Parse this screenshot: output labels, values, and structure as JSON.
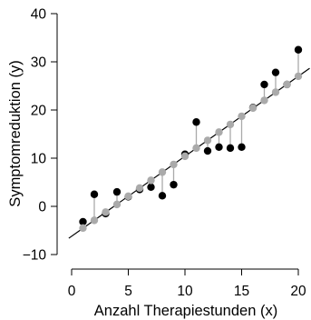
{
  "chart_data": {
    "type": "scatter",
    "title": "",
    "xlabel": "Anzahl Therapiestunden (x)",
    "ylabel": "Symptomreduktion (y)",
    "xlim": [
      0,
      21
    ],
    "ylim": [
      -10,
      40
    ],
    "xticks": [
      0,
      5,
      10,
      15,
      20
    ],
    "yticks": [
      -10,
      0,
      10,
      20,
      30,
      40
    ],
    "grid": false,
    "legend": "none",
    "regression_line": {
      "intercept": -6.2,
      "slope": 1.66,
      "color": "#000000"
    },
    "colors": {
      "observed": "#000000",
      "predicted": "#aaaaaa",
      "residual": "#aaaaaa"
    },
    "series": [
      {
        "x": [
          1,
          2,
          3,
          4,
          5,
          6,
          7,
          8,
          9,
          10,
          11,
          12,
          13,
          14,
          15,
          16,
          17,
          18,
          19,
          20
        ],
        "y": [
          -3.2,
          2.5,
          -1.5,
          3.0,
          2.0,
          3.5,
          4.0,
          2.2,
          4.5,
          10.8,
          17.5,
          11.5,
          12.3,
          12.1,
          12.3,
          20.5,
          25.3,
          27.8,
          25.3,
          32.5
        ]
      },
      {
        "x": [
          1,
          2,
          3,
          4,
          5,
          6,
          7,
          8,
          9,
          10,
          11,
          12,
          13,
          14,
          15,
          16,
          17,
          18,
          19,
          20
        ],
        "y": [
          -4.5,
          -2.9,
          -1.2,
          0.4,
          2.1,
          3.8,
          5.4,
          7.1,
          8.7,
          10.4,
          12.1,
          13.7,
          15.4,
          17.0,
          18.7,
          20.4,
          22.0,
          23.7,
          25.3,
          27.0
        ]
      }
    ]
  }
}
